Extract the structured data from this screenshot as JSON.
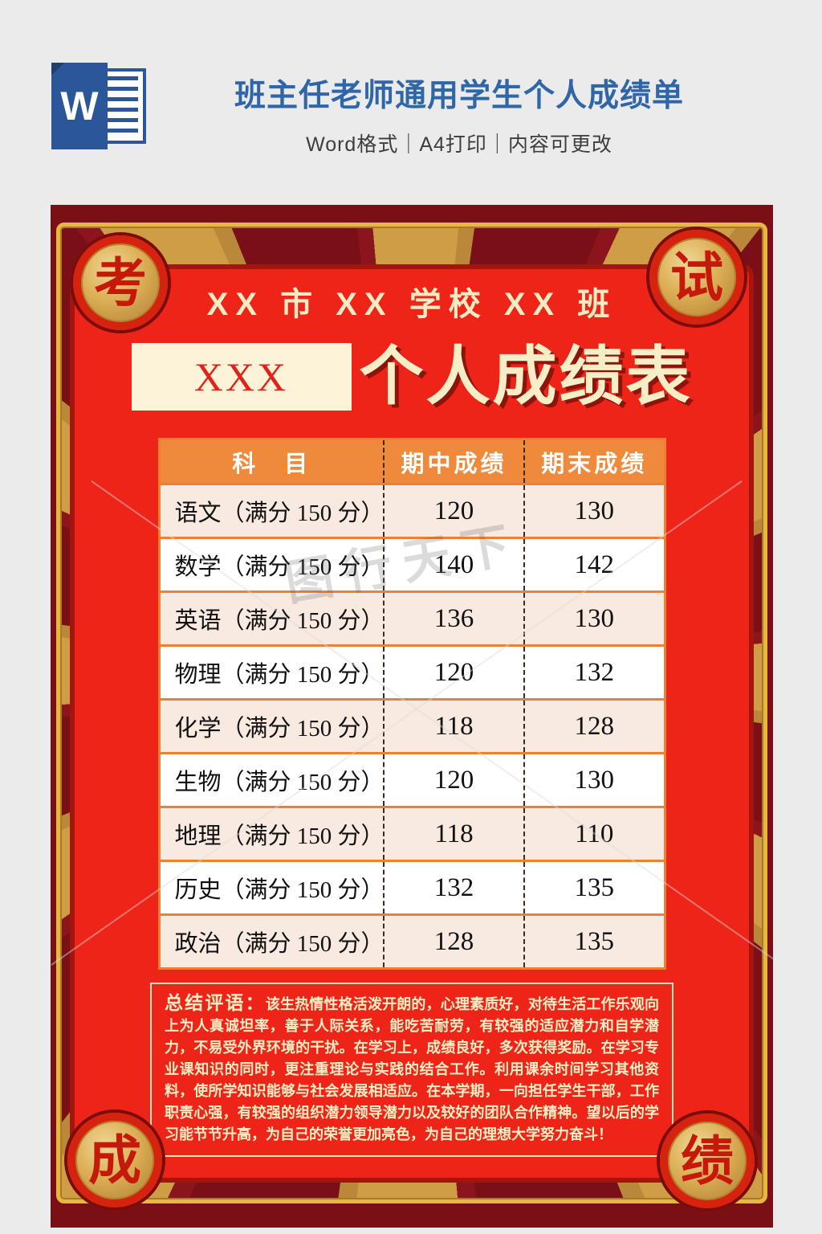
{
  "header": {
    "icon": "word-file-icon",
    "icon_letter": "W",
    "title": "班主任老师通用学生个人成绩单",
    "subtitle": "Word格式｜A4打印｜内容可更改"
  },
  "poster": {
    "badges": {
      "top_left": "考",
      "top_right": "试",
      "bottom_left": "成",
      "bottom_right": "绩"
    },
    "school_line": "XX 市 XX 学校 XX 班",
    "name_placeholder": "XXX",
    "main_title": "个人成绩表",
    "watermark": "图行天下",
    "table": {
      "columns": [
        "科 目",
        "期中成绩",
        "期末成绩"
      ],
      "rows": [
        {
          "subject": "语文（满分 150 分）",
          "midterm": "120",
          "final": "130"
        },
        {
          "subject": "数学（满分 150 分）",
          "midterm": "140",
          "final": "142"
        },
        {
          "subject": "英语（满分 150 分）",
          "midterm": "136",
          "final": "130"
        },
        {
          "subject": "物理（满分 150 分）",
          "midterm": "120",
          "final": "132"
        },
        {
          "subject": "化学（满分 150 分）",
          "midterm": "118",
          "final": "128"
        },
        {
          "subject": "生物（满分 150 分）",
          "midterm": "120",
          "final": "130"
        },
        {
          "subject": "地理（满分 150 分）",
          "midterm": "118",
          "final": "110"
        },
        {
          "subject": "历史（满分 150 分）",
          "midterm": "132",
          "final": "135"
        },
        {
          "subject": "政治（满分 150 分）",
          "midterm": "128",
          "final": "135"
        }
      ]
    },
    "comment": {
      "label": "总结评语：",
      "text": "该生热情性格活泼开朗的，心理素质好，对待生活工作乐观向上为人真诚坦率，善于人际关系，能吃苦耐劳，有较强的适应潜力和自学潜力，不易受外界环境的干扰。在学习上，成绩良好，多次获得奖励。在学习专业课知识的同时，更注重理论与实践的结合工作。利用课余时间学习其他资料，使所学知识能够与社会发展相适应。在本学期，一向担任学生干部，工作职责心强，有较强的组织潜力领导潜力以及较好的团队合作精神。望以后的学习能节节升高，为自己的荣誉更加亮色，为自己的理想大学努力奋斗！"
    }
  },
  "colors": {
    "page_background": "#ebebeb",
    "title_blue": "#2f66a8",
    "word_brand_blue": "#2b579a",
    "poster_dark_red": "#7a1016",
    "panel_red": "#ee2418",
    "gold": "#cf9d46",
    "gold_border": "#e6b841",
    "cream_text": "#f6ecc4",
    "table_header_orange": "#ef8a3c",
    "row_pink": "#f8e9e1",
    "badge_char_red": "#c4190b"
  }
}
